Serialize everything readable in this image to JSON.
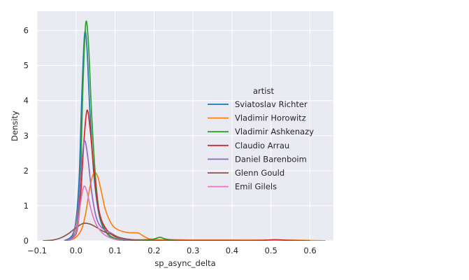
{
  "chart_data": {
    "type": "line",
    "subtype": "kde",
    "title": "",
    "xlabel": "sp_async_delta",
    "ylabel": "Density",
    "xlim": [
      -0.1,
      0.66
    ],
    "ylim": [
      0,
      6.55
    ],
    "x_ticks": [
      -0.1,
      0.0,
      0.1,
      0.2,
      0.3,
      0.4,
      0.5,
      0.6
    ],
    "x_tick_labels": [
      "−0.1",
      "0.0",
      "0.1",
      "0.2",
      "0.3",
      "0.4",
      "0.5",
      "0.6"
    ],
    "y_ticks": [
      0,
      1,
      2,
      3,
      4,
      5,
      6
    ],
    "y_tick_labels": [
      "0",
      "1",
      "2",
      "3",
      "4",
      "5",
      "6"
    ],
    "grid": true,
    "style": "seaborn-darkgrid",
    "legend": {
      "title": "artist",
      "placement": "right"
    },
    "series": [
      {
        "name": "Sviatoslav Richter",
        "color": "#1f77b4",
        "points": [
          [
            -0.03,
            0
          ],
          [
            -0.01,
            0.15
          ],
          [
            0.0,
            0.6
          ],
          [
            0.008,
            1.8
          ],
          [
            0.015,
            4.2
          ],
          [
            0.022,
            5.9
          ],
          [
            0.028,
            5.5
          ],
          [
            0.035,
            3.8
          ],
          [
            0.045,
            2.0
          ],
          [
            0.055,
            1.0
          ],
          [
            0.065,
            0.5
          ],
          [
            0.08,
            0.2
          ],
          [
            0.095,
            0.08
          ],
          [
            0.12,
            0.02
          ],
          [
            0.15,
            0
          ]
        ]
      },
      {
        "name": "Vladimir Horowitz",
        "color": "#ff7f0e",
        "points": [
          [
            -0.02,
            0
          ],
          [
            0.0,
            0.1
          ],
          [
            0.015,
            0.35
          ],
          [
            0.025,
            0.8
          ],
          [
            0.035,
            1.5
          ],
          [
            0.045,
            1.92
          ],
          [
            0.055,
            1.85
          ],
          [
            0.065,
            1.4
          ],
          [
            0.075,
            0.9
          ],
          [
            0.09,
            0.5
          ],
          [
            0.105,
            0.33
          ],
          [
            0.125,
            0.25
          ],
          [
            0.14,
            0.23
          ],
          [
            0.16,
            0.22
          ],
          [
            0.175,
            0.12
          ],
          [
            0.19,
            0.05
          ],
          [
            0.22,
            0.03
          ],
          [
            0.26,
            0.03
          ],
          [
            0.3,
            0.02
          ],
          [
            0.35,
            0.02
          ],
          [
            0.4,
            0.02
          ],
          [
            0.45,
            0.02
          ],
          [
            0.5,
            0.02
          ],
          [
            0.55,
            0.02
          ],
          [
            0.6,
            0.01
          ],
          [
            0.64,
            0
          ]
        ]
      },
      {
        "name": "Vladimir Ashkenazy",
        "color": "#2ca02c",
        "points": [
          [
            -0.02,
            0
          ],
          [
            0.0,
            0.3
          ],
          [
            0.01,
            1.5
          ],
          [
            0.018,
            4.5
          ],
          [
            0.025,
            6.22
          ],
          [
            0.032,
            5.6
          ],
          [
            0.04,
            3.6
          ],
          [
            0.05,
            1.8
          ],
          [
            0.06,
            0.8
          ],
          [
            0.075,
            0.3
          ],
          [
            0.09,
            0.12
          ],
          [
            0.11,
            0.05
          ],
          [
            0.14,
            0.03
          ],
          [
            0.18,
            0.03
          ],
          [
            0.2,
            0.05
          ],
          [
            0.215,
            0.1
          ],
          [
            0.23,
            0.05
          ],
          [
            0.26,
            0.01
          ],
          [
            0.29,
            0
          ]
        ]
      },
      {
        "name": "Claudio Arrau",
        "color": "#d62728",
        "points": [
          [
            -0.02,
            0
          ],
          [
            0.0,
            0.2
          ],
          [
            0.01,
            1.0
          ],
          [
            0.02,
            2.8
          ],
          [
            0.028,
            3.72
          ],
          [
            0.036,
            3.2
          ],
          [
            0.045,
            2.1
          ],
          [
            0.055,
            1.1
          ],
          [
            0.065,
            0.6
          ],
          [
            0.08,
            0.3
          ],
          [
            0.1,
            0.12
          ],
          [
            0.13,
            0.05
          ],
          [
            0.17,
            0.01
          ],
          [
            0.25,
            0.01
          ],
          [
            0.33,
            0.01
          ],
          [
            0.4,
            0.01
          ],
          [
            0.47,
            0.01
          ],
          [
            0.51,
            0.03
          ],
          [
            0.55,
            0.01
          ],
          [
            0.6,
            0
          ]
        ]
      },
      {
        "name": "Daniel Barenboim",
        "color": "#9467bd",
        "points": [
          [
            -0.03,
            0
          ],
          [
            -0.01,
            0.1
          ],
          [
            0.005,
            0.9
          ],
          [
            0.015,
            2.3
          ],
          [
            0.022,
            2.85
          ],
          [
            0.03,
            2.4
          ],
          [
            0.04,
            1.4
          ],
          [
            0.05,
            0.75
          ],
          [
            0.06,
            0.45
          ],
          [
            0.075,
            0.3
          ],
          [
            0.09,
            0.22
          ],
          [
            0.105,
            0.12
          ],
          [
            0.12,
            0.04
          ],
          [
            0.14,
            0
          ]
        ]
      },
      {
        "name": "Glenn Gould",
        "color": "#8c564b",
        "points": [
          [
            -0.085,
            0
          ],
          [
            -0.06,
            0.02
          ],
          [
            -0.04,
            0.08
          ],
          [
            -0.02,
            0.2
          ],
          [
            -0.005,
            0.33
          ],
          [
            0.01,
            0.45
          ],
          [
            0.02,
            0.5
          ],
          [
            0.035,
            0.48
          ],
          [
            0.05,
            0.4
          ],
          [
            0.065,
            0.3
          ],
          [
            0.08,
            0.22
          ],
          [
            0.095,
            0.17
          ],
          [
            0.11,
            0.1
          ],
          [
            0.13,
            0.05
          ],
          [
            0.15,
            0.02
          ],
          [
            0.18,
            0
          ]
        ]
      },
      {
        "name": "Emil Gilels",
        "color": "#e377c2",
        "points": [
          [
            -0.02,
            0
          ],
          [
            -0.005,
            0.1
          ],
          [
            0.005,
            0.5
          ],
          [
            0.012,
            1.1
          ],
          [
            0.02,
            1.55
          ],
          [
            0.028,
            1.4
          ],
          [
            0.036,
            1.0
          ],
          [
            0.045,
            0.65
          ],
          [
            0.055,
            0.4
          ],
          [
            0.07,
            0.2
          ],
          [
            0.085,
            0.1
          ],
          [
            0.1,
            0.04
          ],
          [
            0.12,
            0
          ]
        ]
      }
    ]
  }
}
